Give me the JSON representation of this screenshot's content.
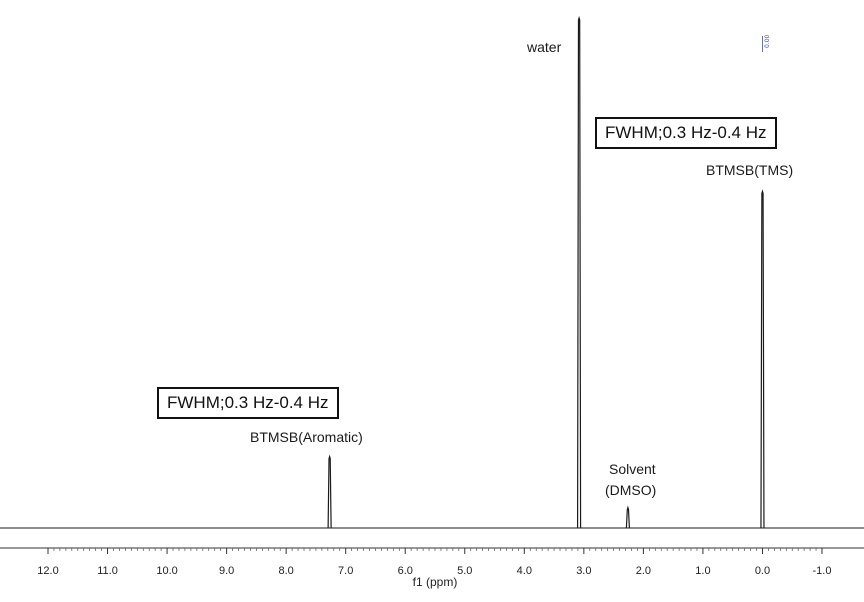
{
  "chart_data": {
    "type": "line",
    "xlabel": "f1 (ppm)",
    "xlim": [
      12.0,
      -1.0
    ],
    "x_reversed": true,
    "ticks": [
      "12.0",
      "11.0",
      "10.0",
      "9.0",
      "8.0",
      "7.0",
      "6.0",
      "5.0",
      "4.0",
      "3.0",
      "2.0",
      "1.0",
      "0.0",
      "-1.0"
    ],
    "tick_values": [
      12,
      11,
      10,
      9,
      8,
      7,
      6,
      5,
      4,
      3,
      2,
      1,
      0,
      -1
    ],
    "grid": false,
    "peaks": [
      {
        "x": 7.27,
        "height": 0.14,
        "label": "BTMSB(Aromatic)"
      },
      {
        "x": 3.08,
        "height": 1.0,
        "label": "water"
      },
      {
        "x": 2.26,
        "height": 0.04,
        "label": "Solvent (DMSO)"
      },
      {
        "x": 0.0,
        "height": 0.66,
        "label": "BTMSB(TMS)"
      }
    ],
    "annotations": [
      {
        "text": "FWHM;0.3 Hz-0.4 Hz",
        "near_peak": "BTMSB(Aromatic)"
      },
      {
        "text": "FWHM;0.3 Hz-0.4 Hz",
        "near_peak": "BTMSB(TMS)"
      }
    ],
    "integration_label": "0.00",
    "line_color": "#1a1a1a"
  },
  "labels": {
    "water": "water",
    "tms": "BTMSB(TMS)",
    "aromatic": "BTMSB(Aromatic)",
    "solvent_line1": "Solvent",
    "solvent_line2": "(DMSO)",
    "fwhm_right": "FWHM;0.3 Hz-0.4 Hz",
    "fwhm_left": "FWHM;0.3 Hz-0.4 Hz",
    "integration": "0.00"
  }
}
